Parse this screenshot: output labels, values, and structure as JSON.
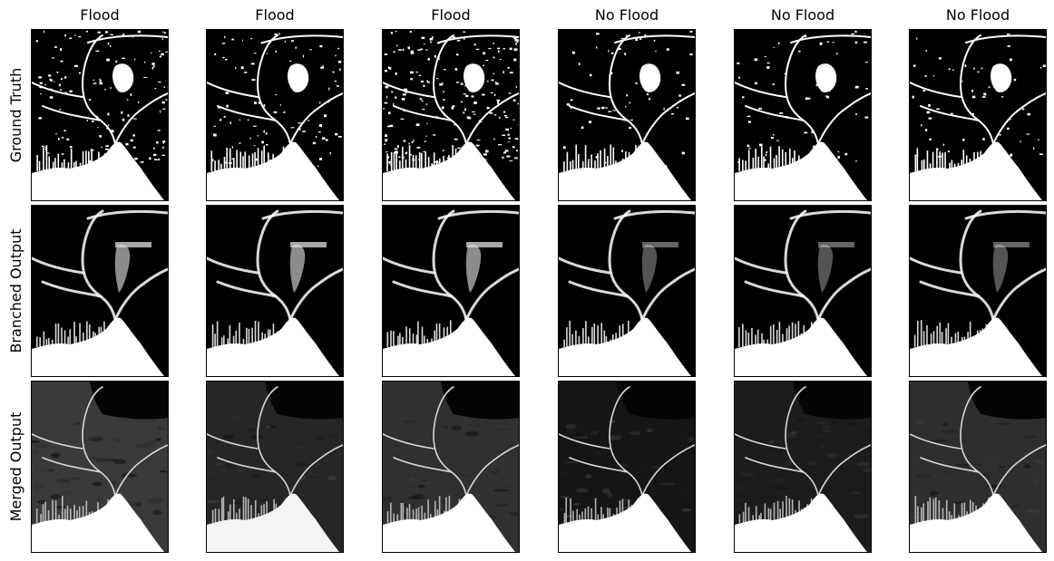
{
  "figure": {
    "column_titles": [
      "Flood",
      "Flood",
      "Flood",
      "No Flood",
      "No Flood",
      "No Flood"
    ],
    "row_labels": [
      "Ground Truth",
      "Branched Output",
      "Merged Output"
    ]
  },
  "panels": [
    {
      "row": "Ground Truth",
      "column": 1,
      "style": "binary",
      "noise": "high"
    },
    {
      "row": "Ground Truth",
      "column": 2,
      "style": "binary",
      "noise": "medium"
    },
    {
      "row": "Ground Truth",
      "column": 3,
      "style": "binary",
      "noise": "very-high"
    },
    {
      "row": "Ground Truth",
      "column": 4,
      "style": "binary",
      "noise": "low"
    },
    {
      "row": "Ground Truth",
      "column": 5,
      "style": "binary",
      "noise": "low"
    },
    {
      "row": "Ground Truth",
      "column": 6,
      "style": "binary",
      "noise": "low"
    },
    {
      "row": "Branched Output",
      "column": 1,
      "style": "soft",
      "tone": "bright"
    },
    {
      "row": "Branched Output",
      "column": 2,
      "style": "soft",
      "tone": "bright"
    },
    {
      "row": "Branched Output",
      "column": 3,
      "style": "soft",
      "tone": "bright"
    },
    {
      "row": "Branched Output",
      "column": 4,
      "style": "soft",
      "tone": "dim"
    },
    {
      "row": "Branched Output",
      "column": 5,
      "style": "soft",
      "tone": "dim"
    },
    {
      "row": "Branched Output",
      "column": 6,
      "style": "soft",
      "tone": "dim"
    },
    {
      "row": "Merged Output",
      "column": 1,
      "style": "gray",
      "background": "#3a3a3a"
    },
    {
      "row": "Merged Output",
      "column": 2,
      "style": "gray",
      "background": "#262626"
    },
    {
      "row": "Merged Output",
      "column": 3,
      "style": "gray",
      "background": "#303030"
    },
    {
      "row": "Merged Output",
      "column": 4,
      "style": "gray",
      "background": "#151515"
    },
    {
      "row": "Merged Output",
      "column": 5,
      "style": "gray",
      "background": "#1c1c1c"
    },
    {
      "row": "Merged Output",
      "column": 6,
      "style": "gray",
      "background": "#2e2e2e"
    }
  ],
  "colors": {
    "background": "#ffffff",
    "water": "#ffffff",
    "land": "#000000",
    "border": "#000000"
  }
}
